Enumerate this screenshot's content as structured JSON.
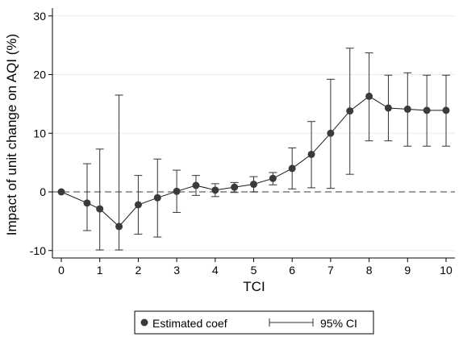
{
  "chart_data": {
    "type": "scatter",
    "title": "",
    "xlabel": "TCI",
    "ylabel": "Impact of unit change on AQI (%)",
    "xlim": [
      0,
      10
    ],
    "ylim": [
      -10,
      30
    ],
    "x_ticks": [
      0,
      1,
      2,
      3,
      4,
      5,
      6,
      7,
      8,
      9,
      10
    ],
    "y_ticks": [
      -10,
      0,
      10,
      20,
      30
    ],
    "grid": true,
    "reference_line_y": 0,
    "legend_position": "bottom",
    "legend": {
      "point_label": "Estimated coef",
      "ci_label": "95% CI"
    },
    "series": [
      {
        "name": "Estimated coef",
        "x": [
          0,
          0.67,
          1,
          1.5,
          2,
          2.5,
          3,
          3.5,
          4,
          4.5,
          5,
          5.5,
          6,
          6.5,
          7,
          7.5,
          8,
          8.5,
          9,
          9.5,
          10
        ],
        "y": [
          0,
          -1.9,
          -2.9,
          -5.9,
          -2.2,
          -1.0,
          0.1,
          1.1,
          0.3,
          0.8,
          1.3,
          2.3,
          4.0,
          6.4,
          10.0,
          13.8,
          16.3,
          14.3,
          14.1,
          13.9,
          13.9
        ],
        "ci_low": [
          0,
          -6.6,
          -9.9,
          -9.9,
          -7.2,
          -7.7,
          -3.5,
          -0.6,
          -0.8,
          -0.1,
          0.0,
          1.2,
          0.5,
          0.7,
          0.6,
          3.0,
          8.7,
          8.7,
          7.8,
          7.8,
          7.8
        ],
        "ci_high": [
          0,
          4.8,
          7.3,
          16.5,
          2.8,
          5.6,
          3.7,
          2.8,
          1.4,
          1.6,
          2.6,
          3.3,
          7.5,
          12.0,
          19.2,
          24.5,
          23.7,
          19.9,
          20.3,
          19.9,
          19.9
        ]
      }
    ]
  }
}
